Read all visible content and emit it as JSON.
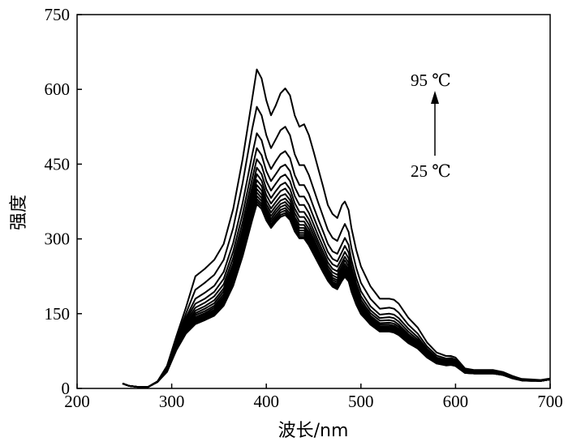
{
  "chart_data": {
    "type": "line",
    "xlabel": "波长/nm",
    "ylabel": "强度",
    "xlim": [
      200,
      700
    ],
    "ylim": [
      0,
      750
    ],
    "xticks": [
      "200",
      "300",
      "400",
      "500",
      "600",
      "700"
    ],
    "yticks": [
      "0",
      "150",
      "300",
      "450",
      "600",
      "750"
    ],
    "grid": false,
    "legend": "none",
    "annotations": {
      "top": "95 ℃",
      "bottom": "25 ℃"
    },
    "line_color": "#000000",
    "x": [
      248,
      255,
      265,
      275,
      285,
      295,
      305,
      315,
      325,
      335,
      345,
      355,
      365,
      375,
      385,
      390,
      395,
      400,
      405,
      410,
      415,
      420,
      425,
      430,
      435,
      440,
      445,
      450,
      455,
      460,
      465,
      470,
      475,
      480,
      483,
      487,
      490,
      495,
      500,
      505,
      510,
      520,
      530,
      535,
      540,
      550,
      560,
      570,
      580,
      590,
      595,
      600,
      610,
      620,
      630,
      640,
      650,
      660,
      670,
      680,
      690,
      700
    ],
    "series": [
      {
        "values": [
          10,
          5,
          3,
          3,
          14,
          45,
          105,
          162,
          225,
          240,
          258,
          290,
          360,
          460,
          580,
          640,
          622,
          578,
          548,
          568,
          592,
          602,
          588,
          548,
          525,
          530,
          508,
          475,
          440,
          405,
          368,
          350,
          342,
          368,
          375,
          358,
          322,
          278,
          245,
          225,
          205,
          180,
          180,
          178,
          170,
          142,
          122,
          92,
          72,
          65,
          65,
          62,
          40,
          37,
          37,
          37,
          33,
          25,
          19,
          18,
          17,
          20
        ]
      },
      {
        "values": [
          10,
          5,
          3,
          3,
          14,
          44,
          100,
          150,
          198,
          212,
          228,
          258,
          322,
          412,
          520,
          565,
          548,
          508,
          482,
          500,
          518,
          525,
          508,
          470,
          448,
          448,
          428,
          400,
          372,
          345,
          318,
          302,
          296,
          318,
          330,
          314,
          282,
          242,
          212,
          196,
          180,
          160,
          162,
          160,
          152,
          128,
          110,
          84,
          66,
          60,
          61,
          58,
          38,
          36,
          36,
          36,
          32,
          24,
          18,
          17,
          16,
          19
        ]
      },
      {
        "values": [
          10,
          5,
          3,
          3,
          14,
          43,
          97,
          142,
          180,
          192,
          206,
          234,
          292,
          372,
          468,
          512,
          498,
          462,
          440,
          456,
          470,
          476,
          462,
          428,
          408,
          408,
          390,
          364,
          339,
          315,
          290,
          275,
          270,
          290,
          302,
          288,
          258,
          222,
          195,
          180,
          165,
          148,
          150,
          148,
          141,
          120,
          103,
          79,
          62,
          57,
          58,
          55,
          37,
          35,
          35,
          35,
          31,
          23,
          18,
          17,
          16,
          19
        ]
      },
      {
        "values": [
          10,
          5,
          3,
          3,
          14,
          42,
          95,
          138,
          170,
          180,
          194,
          220,
          275,
          350,
          440,
          482,
          468,
          436,
          416,
          430,
          444,
          449,
          436,
          404,
          385,
          385,
          368,
          344,
          320,
          297,
          274,
          260,
          255,
          274,
          286,
          273,
          245,
          211,
          185,
          171,
          157,
          141,
          143,
          141,
          134,
          114,
          98,
          76,
          60,
          55,
          56,
          53,
          36,
          34,
          34,
          34,
          31,
          23,
          18,
          17,
          16,
          19
        ]
      },
      {
        "values": [
          10,
          5,
          3,
          3,
          14,
          41,
          93,
          134,
          162,
          172,
          185,
          209,
          262,
          333,
          420,
          460,
          447,
          416,
          397,
          411,
          424,
          429,
          416,
          386,
          368,
          368,
          352,
          329,
          306,
          284,
          262,
          249,
          244,
          262,
          274,
          261,
          235,
          202,
          178,
          164,
          151,
          136,
          137,
          135,
          128,
          109,
          94,
          73,
          58,
          53,
          54,
          51,
          35,
          33,
          33,
          33,
          30,
          22,
          17,
          16,
          16,
          19
        ]
      },
      {
        "values": [
          10,
          5,
          3,
          3,
          13,
          40,
          91,
          130,
          156,
          165,
          177,
          201,
          251,
          320,
          404,
          443,
          430,
          400,
          382,
          396,
          408,
          413,
          400,
          372,
          354,
          354,
          339,
          317,
          295,
          274,
          253,
          240,
          235,
          253,
          264,
          252,
          227,
          195,
          172,
          159,
          146,
          131,
          132,
          130,
          124,
          106,
          91,
          71,
          56,
          52,
          53,
          50,
          34,
          33,
          33,
          33,
          30,
          22,
          17,
          16,
          15,
          18
        ]
      },
      {
        "values": [
          10,
          5,
          3,
          3,
          13,
          39,
          89,
          127,
          151,
          160,
          171,
          195,
          243,
          310,
          392,
          430,
          417,
          388,
          371,
          384,
          396,
          401,
          388,
          361,
          344,
          344,
          329,
          308,
          287,
          266,
          246,
          233,
          228,
          246,
          257,
          245,
          221,
          190,
          167,
          155,
          142,
          128,
          128,
          126,
          120,
          103,
          89,
          69,
          55,
          51,
          52,
          49,
          34,
          32,
          32,
          32,
          29,
          22,
          17,
          16,
          15,
          18
        ]
      },
      {
        "values": [
          10,
          5,
          3,
          3,
          13,
          38,
          87,
          124,
          147,
          155,
          166,
          189,
          236,
          301,
          381,
          418,
          406,
          378,
          361,
          374,
          386,
          390,
          378,
          352,
          335,
          335,
          320,
          300,
          279,
          259,
          240,
          227,
          222,
          240,
          250,
          239,
          215,
          185,
          163,
          151,
          139,
          125,
          125,
          123,
          117,
          100,
          87,
          67,
          54,
          50,
          51,
          48,
          33,
          32,
          32,
          32,
          29,
          22,
          17,
          16,
          15,
          18
        ]
      },
      {
        "values": [
          10,
          5,
          3,
          3,
          13,
          37,
          85,
          121,
          143,
          151,
          162,
          184,
          230,
          294,
          372,
          408,
          397,
          370,
          353,
          366,
          377,
          381,
          370,
          344,
          328,
          328,
          313,
          294,
          273,
          254,
          235,
          222,
          217,
          235,
          245,
          234,
          210,
          181,
          160,
          148,
          136,
          122,
          122,
          120,
          115,
          98,
          85,
          66,
          53,
          49,
          50,
          47,
          33,
          31,
          31,
          31,
          28,
          21,
          17,
          16,
          15,
          18
        ]
      },
      {
        "values": [
          10,
          5,
          3,
          3,
          13,
          36,
          83,
          118,
          140,
          148,
          158,
          180,
          225,
          288,
          365,
          400,
          389,
          363,
          346,
          359,
          370,
          374,
          363,
          338,
          322,
          322,
          308,
          289,
          268,
          249,
          231,
          218,
          213,
          231,
          240,
          230,
          206,
          178,
          157,
          146,
          134,
          120,
          120,
          118,
          113,
          97,
          84,
          65,
          52,
          48,
          49,
          47,
          32,
          31,
          31,
          31,
          28,
          21,
          17,
          16,
          15,
          18
        ]
      },
      {
        "values": [
          10,
          5,
          3,
          3,
          13,
          35,
          81,
          116,
          137,
          145,
          155,
          176,
          220,
          282,
          358,
          393,
          382,
          357,
          340,
          353,
          364,
          368,
          357,
          332,
          317,
          317,
          303,
          284,
          264,
          245,
          227,
          214,
          209,
          227,
          236,
          226,
          203,
          175,
          155,
          144,
          132,
          118,
          118,
          116,
          111,
          95,
          83,
          64,
          52,
          48,
          49,
          46,
          32,
          31,
          31,
          31,
          28,
          21,
          17,
          16,
          15,
          18
        ]
      },
      {
        "values": [
          10,
          5,
          3,
          3,
          13,
          35,
          80,
          114,
          135,
          143,
          152,
          173,
          216,
          277,
          352,
          386,
          376,
          351,
          335,
          347,
          358,
          362,
          351,
          327,
          312,
          312,
          298,
          280,
          260,
          242,
          224,
          211,
          206,
          224,
          233,
          223,
          200,
          173,
          153,
          142,
          131,
          117,
          117,
          115,
          110,
          94,
          82,
          63,
          51,
          47,
          48,
          46,
          32,
          30,
          30,
          30,
          28,
          21,
          16,
          16,
          15,
          18
        ]
      },
      {
        "values": [
          10,
          5,
          3,
          3,
          13,
          34,
          79,
          112,
          133,
          141,
          150,
          170,
          212,
          272,
          346,
          380,
          370,
          346,
          330,
          342,
          353,
          357,
          346,
          322,
          308,
          308,
          294,
          276,
          257,
          239,
          221,
          208,
          203,
          221,
          230,
          220,
          198,
          171,
          151,
          141,
          130,
          116,
          116,
          114,
          109,
          93,
          81,
          63,
          51,
          47,
          48,
          45,
          31,
          30,
          30,
          30,
          27,
          21,
          16,
          16,
          15,
          18
        ]
      },
      {
        "values": [
          10,
          5,
          3,
          3,
          13,
          34,
          78,
          111,
          131,
          139,
          148,
          168,
          209,
          268,
          341,
          375,
          365,
          341,
          326,
          338,
          348,
          352,
          342,
          318,
          304,
          304,
          290,
          272,
          254,
          236,
          218,
          206,
          201,
          218,
          227,
          217,
          196,
          169,
          150,
          140,
          129,
          115,
          115,
          113,
          108,
          92,
          80,
          62,
          50,
          47,
          48,
          45,
          31,
          30,
          30,
          30,
          27,
          21,
          16,
          15,
          15,
          18
        ]
      },
      {
        "values": [
          10,
          5,
          3,
          3,
          13,
          33,
          77,
          110,
          129,
          137,
          146,
          166,
          206,
          265,
          337,
          370,
          360,
          337,
          322,
          334,
          344,
          348,
          338,
          315,
          301,
          301,
          287,
          269,
          251,
          233,
          216,
          204,
          199,
          216,
          224,
          215,
          194,
          168,
          149,
          139,
          128,
          114,
          114,
          112,
          107,
          91,
          80,
          62,
          50,
          46,
          47,
          45,
          31,
          30,
          30,
          30,
          27,
          20,
          16,
          15,
          15,
          18
        ]
      }
    ]
  }
}
